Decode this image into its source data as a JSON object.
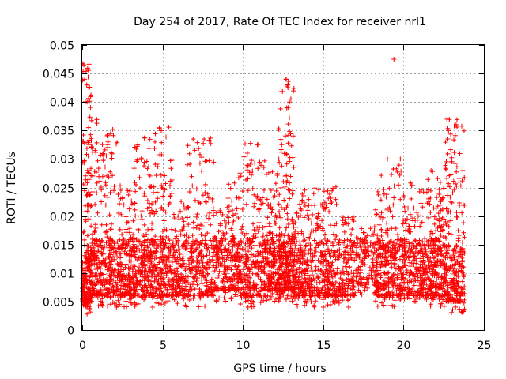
{
  "chart_data": {
    "type": "scatter",
    "title": "Day 254 of 2017, Rate Of TEC Index for receiver nrl1",
    "xlabel": "GPS time / hours",
    "ylabel": "ROTI / TECUs",
    "xlim": [
      0,
      25
    ],
    "ylim": [
      0,
      0.05
    ],
    "x_ticks": [
      "0",
      "5",
      "10",
      "15",
      "20",
      "25"
    ],
    "y_ticks": [
      "0",
      "0.005",
      "0.01",
      "0.015",
      "0.02",
      "0.025",
      "0.03",
      "0.035",
      "0.04",
      "0.045",
      "0.05"
    ],
    "grid": true,
    "marker": "+",
    "color": "#ff0000",
    "series": [
      {
        "name": "ROTI",
        "description_hint": "dense cloud of plus markers, mostly 0.004-0.02 TECU/s with spikes",
        "clusters": [
          {
            "x_from": 0.0,
            "x_to": 0.6,
            "y_min": 0.003,
            "y_max": 0.047,
            "n": 260
          },
          {
            "x_from": 0.6,
            "x_to": 1.2,
            "y_min": 0.004,
            "y_max": 0.037,
            "n": 140
          },
          {
            "x_from": 1.2,
            "x_to": 2.2,
            "y_min": 0.004,
            "y_max": 0.035,
            "n": 200
          },
          {
            "x_from": 2.2,
            "x_to": 3.2,
            "y_min": 0.004,
            "y_max": 0.026,
            "n": 200
          },
          {
            "x_from": 3.2,
            "x_to": 4.4,
            "y_min": 0.004,
            "y_max": 0.034,
            "n": 260
          },
          {
            "x_from": 4.4,
            "x_to": 5.6,
            "y_min": 0.004,
            "y_max": 0.036,
            "n": 240
          },
          {
            "x_from": 5.6,
            "x_to": 6.5,
            "y_min": 0.004,
            "y_max": 0.023,
            "n": 160
          },
          {
            "x_from": 6.5,
            "x_to": 8.2,
            "y_min": 0.004,
            "y_max": 0.034,
            "n": 260
          },
          {
            "x_from": 8.2,
            "x_to": 9.0,
            "y_min": 0.005,
            "y_max": 0.021,
            "n": 120
          },
          {
            "x_from": 9.0,
            "x_to": 9.8,
            "y_min": 0.005,
            "y_max": 0.027,
            "n": 140
          },
          {
            "x_from": 9.8,
            "x_to": 11.2,
            "y_min": 0.004,
            "y_max": 0.033,
            "n": 240
          },
          {
            "x_from": 11.2,
            "x_to": 12.2,
            "y_min": 0.005,
            "y_max": 0.03,
            "n": 220
          },
          {
            "x_from": 12.2,
            "x_to": 13.2,
            "y_min": 0.005,
            "y_max": 0.044,
            "n": 320
          },
          {
            "x_from": 13.2,
            "x_to": 14.6,
            "y_min": 0.004,
            "y_max": 0.025,
            "n": 240
          },
          {
            "x_from": 14.6,
            "x_to": 16.0,
            "y_min": 0.004,
            "y_max": 0.026,
            "n": 240
          },
          {
            "x_from": 16.0,
            "x_to": 17.0,
            "y_min": 0.004,
            "y_max": 0.02,
            "n": 140
          },
          {
            "x_from": 17.0,
            "x_to": 18.2,
            "y_min": 0.006,
            "y_max": 0.017,
            "n": 120
          },
          {
            "x_from": 18.2,
            "x_to": 19.2,
            "y_min": 0.004,
            "y_max": 0.028,
            "n": 200
          },
          {
            "x_from": 19.2,
            "x_to": 20.0,
            "y_min": 0.004,
            "y_max": 0.03,
            "n": 140
          },
          {
            "x_from": 20.0,
            "x_to": 21.5,
            "y_min": 0.004,
            "y_max": 0.026,
            "n": 260
          },
          {
            "x_from": 21.5,
            "x_to": 22.6,
            "y_min": 0.004,
            "y_max": 0.028,
            "n": 260
          },
          {
            "x_from": 22.6,
            "x_to": 23.8,
            "y_min": 0.003,
            "y_max": 0.037,
            "n": 280
          }
        ],
        "outliers": [
          {
            "x": 19.4,
            "y": 0.0475
          },
          {
            "x": 0.1,
            "y": 0.0465
          },
          {
            "x": 0.15,
            "y": 0.044
          },
          {
            "x": 12.7,
            "y": 0.044
          },
          {
            "x": 12.8,
            "y": 0.043
          },
          {
            "x": 22.7,
            "y": 0.037
          },
          {
            "x": 4.8,
            "y": 0.0355
          },
          {
            "x": 1.9,
            "y": 0.0352
          },
          {
            "x": 3.9,
            "y": 0.0338
          },
          {
            "x": 6.9,
            "y": 0.0335
          },
          {
            "x": 12.9,
            "y": 0.04
          },
          {
            "x": 0.3,
            "y": 0.04
          },
          {
            "x": 22.8,
            "y": 0.035
          },
          {
            "x": 10.9,
            "y": 0.0325
          },
          {
            "x": 19.0,
            "y": 0.03
          },
          {
            "x": 19.8,
            "y": 0.03
          },
          {
            "x": 23.6,
            "y": 0.0032
          },
          {
            "x": 0.3,
            "y": 0.0028
          }
        ]
      }
    ]
  }
}
